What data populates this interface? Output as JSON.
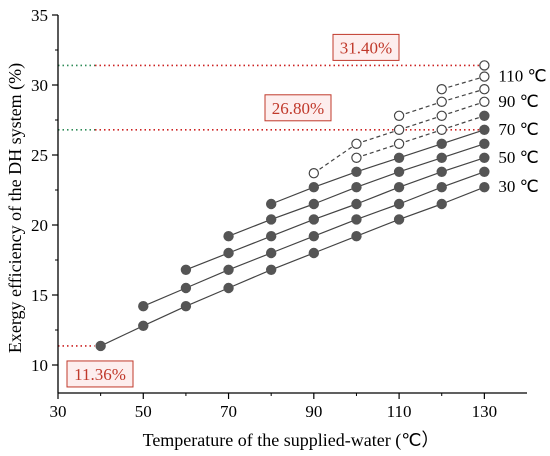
{
  "chart_data": {
    "type": "scatter",
    "title": "",
    "xlabel": "Temperature of the supplied-water (℃）",
    "ylabel": "Exergy efficiency of the DH system (%)",
    "xlim": [
      30,
      140
    ],
    "ylim": [
      8,
      35
    ],
    "xticks": [
      30,
      50,
      70,
      90,
      110,
      130
    ],
    "yticks": [
      10,
      15,
      20,
      25,
      30,
      35
    ],
    "grid": false,
    "series": [
      {
        "name": "30 ℃",
        "x": [
          40,
          50,
          60,
          70,
          80,
          90,
          100,
          110,
          120,
          130
        ],
        "y": [
          11.36,
          12.8,
          14.2,
          15.5,
          16.8,
          18.0,
          19.2,
          20.4,
          21.5,
          22.7
        ],
        "filled": [
          true,
          true,
          true,
          true,
          true,
          true,
          true,
          true,
          true,
          true
        ]
      },
      {
        "name": "",
        "x": [
          50,
          60,
          70,
          80,
          90,
          100,
          110,
          120,
          130
        ],
        "y": [
          14.2,
          15.5,
          16.8,
          18.0,
          19.2,
          20.4,
          21.5,
          22.7,
          23.8
        ],
        "filled": [
          true,
          true,
          true,
          true,
          true,
          true,
          true,
          true,
          true
        ]
      },
      {
        "name": "50 ℃",
        "x": [
          60,
          70,
          80,
          90,
          100,
          110,
          120,
          130
        ],
        "y": [
          16.8,
          18.0,
          19.2,
          20.4,
          21.5,
          22.7,
          23.8,
          24.8
        ],
        "filled": [
          true,
          true,
          true,
          true,
          true,
          true,
          true,
          true
        ]
      },
      {
        "name": "",
        "x": [
          70,
          80,
          90,
          100,
          110,
          120,
          130
        ],
        "y": [
          19.2,
          20.4,
          21.5,
          22.7,
          23.8,
          24.8,
          25.8
        ],
        "filled": [
          true,
          true,
          true,
          true,
          true,
          true,
          true
        ]
      },
      {
        "name": "70 ℃",
        "x": [
          80,
          90,
          100,
          110,
          120,
          130
        ],
        "y": [
          21.5,
          22.7,
          23.8,
          24.8,
          25.8,
          26.8
        ],
        "filled": [
          true,
          true,
          true,
          true,
          true,
          true
        ]
      },
      {
        "name": "",
        "x": [
          100,
          110,
          120,
          130
        ],
        "y": [
          24.8,
          25.8,
          26.8,
          27.8
        ],
        "filled": [
          false,
          false,
          false,
          true
        ]
      },
      {
        "name": "90 ℃",
        "x": [
          90,
          100,
          110,
          120,
          130
        ],
        "y": [
          23.7,
          25.8,
          26.8,
          27.8,
          28.8
        ],
        "filled": [
          false,
          false,
          false,
          false,
          false
        ]
      },
      {
        "name": "",
        "x": [
          110,
          120,
          130
        ],
        "y": [
          27.8,
          28.8,
          29.7
        ],
        "filled": [
          false,
          false,
          false
        ]
      },
      {
        "name": "110 ℃",
        "x": [
          120,
          130
        ],
        "y": [
          29.7,
          30.6
        ],
        "filled": [
          false,
          false
        ]
      },
      {
        "name": "",
        "x": [
          130
        ],
        "y": [
          31.4
        ],
        "filled": [
          false
        ]
      }
    ],
    "reference_lines": [
      {
        "y": 31.4,
        "label": "31.40%",
        "color": "#2e8b57",
        "style": "dotted"
      },
      {
        "y": 26.8,
        "label": "26.80%",
        "color": "#2e8b57",
        "style": "dotted"
      },
      {
        "y": 11.36,
        "label": "11.36%",
        "color": "#2e8b57",
        "style": "dotted"
      }
    ],
    "colors": {
      "marker": "#555555",
      "line": "#444444",
      "callout_text": "#c0392b",
      "callout_border": "#c0392b",
      "dotted_red": "#cc2222",
      "dotted_green": "#2e8b57"
    }
  }
}
